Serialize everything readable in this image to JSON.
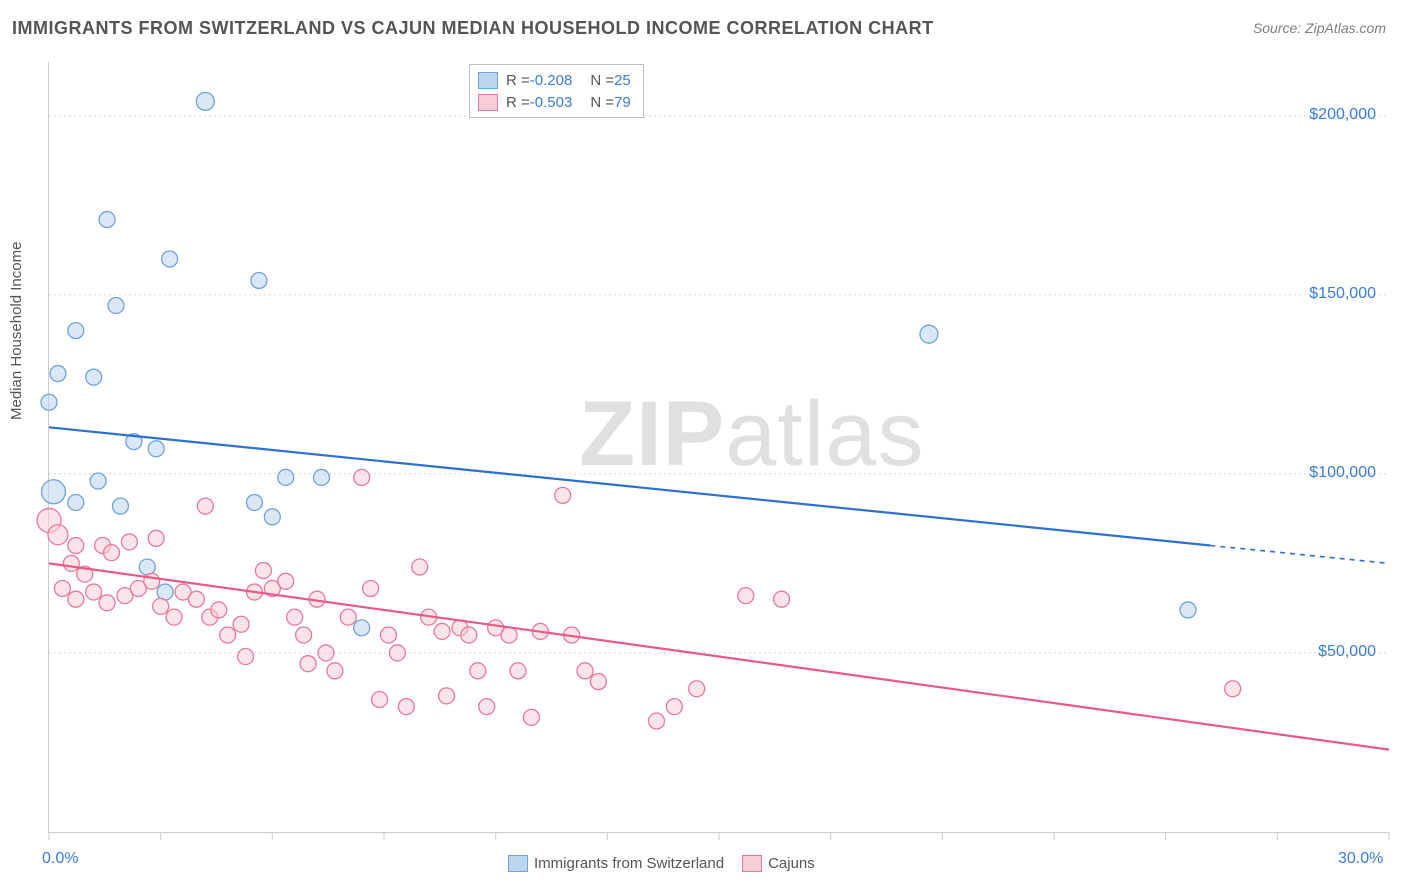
{
  "title": "IMMIGRANTS FROM SWITZERLAND VS CAJUN MEDIAN HOUSEHOLD INCOME CORRELATION CHART",
  "source": "Source: ZipAtlas.com",
  "watermark": {
    "part1": "ZIP",
    "part2": "atlas"
  },
  "y_axis_label": "Median Household Income",
  "chart": {
    "type": "scatter",
    "background_color": "#ffffff",
    "grid_color": "#d8d8d8",
    "axis_color": "#cccccc",
    "tick_label_color": "#3b7dd8",
    "text_color": "#555555",
    "xlim": [
      0,
      30
    ],
    "ylim": [
      0,
      215000
    ],
    "x_ticks_major": [
      0,
      30
    ],
    "x_ticks_major_labels": [
      "0.0%",
      "30.0%"
    ],
    "x_ticks_minor": [
      2.5,
      5,
      7.5,
      10,
      12.5,
      15,
      17.5,
      20,
      22.5,
      25,
      27.5
    ],
    "y_ticks": [
      50000,
      100000,
      150000,
      200000
    ],
    "y_tick_labels": [
      "$50,000",
      "$100,000",
      "$150,000",
      "$200,000"
    ],
    "series": [
      {
        "name": "Immigrants from Switzerland",
        "fill_color": "#bcd4ee",
        "stroke_color": "#6fa3dd",
        "fill_opacity": 0.55,
        "R_label": "R = ",
        "R_value": "-0.208",
        "N_label": "N = ",
        "N_value": "25",
        "trend": {
          "x1": 0,
          "y1": 113000,
          "x2": 26,
          "y2": 80000,
          "x2_dash": 30,
          "y2_dash": 75000,
          "color": "#2e6fd0"
        },
        "points": [
          {
            "x": 3.5,
            "y": 204000,
            "r": 9
          },
          {
            "x": 1.3,
            "y": 171000,
            "r": 8
          },
          {
            "x": 2.7,
            "y": 160000,
            "r": 8
          },
          {
            "x": 4.7,
            "y": 154000,
            "r": 8
          },
          {
            "x": 1.5,
            "y": 147000,
            "r": 8
          },
          {
            "x": 0.6,
            "y": 140000,
            "r": 8
          },
          {
            "x": 0.2,
            "y": 128000,
            "r": 8
          },
          {
            "x": 1.0,
            "y": 127000,
            "r": 8
          },
          {
            "x": 0.0,
            "y": 120000,
            "r": 8
          },
          {
            "x": 1.9,
            "y": 109000,
            "r": 8
          },
          {
            "x": 2.4,
            "y": 107000,
            "r": 8
          },
          {
            "x": 1.1,
            "y": 98000,
            "r": 8
          },
          {
            "x": 0.1,
            "y": 95000,
            "r": 12
          },
          {
            "x": 1.6,
            "y": 91000,
            "r": 8
          },
          {
            "x": 0.6,
            "y": 92000,
            "r": 8
          },
          {
            "x": 4.6,
            "y": 92000,
            "r": 8
          },
          {
            "x": 5.3,
            "y": 99000,
            "r": 8
          },
          {
            "x": 6.1,
            "y": 99000,
            "r": 8
          },
          {
            "x": 5.0,
            "y": 88000,
            "r": 8
          },
          {
            "x": 2.2,
            "y": 74000,
            "r": 8
          },
          {
            "x": 2.6,
            "y": 67000,
            "r": 8
          },
          {
            "x": 7.0,
            "y": 57000,
            "r": 8
          },
          {
            "x": 19.7,
            "y": 139000,
            "r": 9
          },
          {
            "x": 25.5,
            "y": 62000,
            "r": 8
          }
        ]
      },
      {
        "name": "Cajuns",
        "fill_color": "#f7cdd7",
        "stroke_color": "#e77a9a",
        "fill_opacity": 0.55,
        "R_label": "R = ",
        "R_value": "-0.503",
        "N_label": "N = ",
        "N_value": "79",
        "trend": {
          "x1": 0,
          "y1": 75000,
          "x2": 30,
          "y2": 23000,
          "color": "#e85b86"
        },
        "points": [
          {
            "x": 0.0,
            "y": 87000,
            "r": 12
          },
          {
            "x": 0.2,
            "y": 83000,
            "r": 10
          },
          {
            "x": 0.6,
            "y": 80000,
            "r": 8
          },
          {
            "x": 0.5,
            "y": 75000,
            "r": 8
          },
          {
            "x": 1.2,
            "y": 80000,
            "r": 8
          },
          {
            "x": 1.4,
            "y": 78000,
            "r": 8
          },
          {
            "x": 1.8,
            "y": 81000,
            "r": 8
          },
          {
            "x": 0.8,
            "y": 72000,
            "r": 8
          },
          {
            "x": 0.3,
            "y": 68000,
            "r": 8
          },
          {
            "x": 0.6,
            "y": 65000,
            "r": 8
          },
          {
            "x": 1.0,
            "y": 67000,
            "r": 8
          },
          {
            "x": 1.3,
            "y": 64000,
            "r": 8
          },
          {
            "x": 1.7,
            "y": 66000,
            "r": 8
          },
          {
            "x": 2.0,
            "y": 68000,
            "r": 8
          },
          {
            "x": 2.3,
            "y": 70000,
            "r": 8
          },
          {
            "x": 2.5,
            "y": 63000,
            "r": 8
          },
          {
            "x": 2.8,
            "y": 60000,
            "r": 8
          },
          {
            "x": 2.4,
            "y": 82000,
            "r": 8
          },
          {
            "x": 3.0,
            "y": 67000,
            "r": 8
          },
          {
            "x": 3.3,
            "y": 65000,
            "r": 8
          },
          {
            "x": 3.5,
            "y": 91000,
            "r": 8
          },
          {
            "x": 3.6,
            "y": 60000,
            "r": 8
          },
          {
            "x": 3.8,
            "y": 62000,
            "r": 8
          },
          {
            "x": 4.0,
            "y": 55000,
            "r": 8
          },
          {
            "x": 4.3,
            "y": 58000,
            "r": 8
          },
          {
            "x": 4.4,
            "y": 49000,
            "r": 8
          },
          {
            "x": 4.6,
            "y": 67000,
            "r": 8
          },
          {
            "x": 4.8,
            "y": 73000,
            "r": 8
          },
          {
            "x": 5.0,
            "y": 68000,
            "r": 8
          },
          {
            "x": 5.3,
            "y": 70000,
            "r": 8
          },
          {
            "x": 5.5,
            "y": 60000,
            "r": 8
          },
          {
            "x": 5.7,
            "y": 55000,
            "r": 8
          },
          {
            "x": 5.8,
            "y": 47000,
            "r": 8
          },
          {
            "x": 6.0,
            "y": 65000,
            "r": 8
          },
          {
            "x": 6.2,
            "y": 50000,
            "r": 8
          },
          {
            "x": 6.4,
            "y": 45000,
            "r": 8
          },
          {
            "x": 6.7,
            "y": 60000,
            "r": 8
          },
          {
            "x": 7.0,
            "y": 99000,
            "r": 8
          },
          {
            "x": 7.2,
            "y": 68000,
            "r": 8
          },
          {
            "x": 7.4,
            "y": 37000,
            "r": 8
          },
          {
            "x": 7.6,
            "y": 55000,
            "r": 8
          },
          {
            "x": 7.8,
            "y": 50000,
            "r": 8
          },
          {
            "x": 8.0,
            "y": 35000,
            "r": 8
          },
          {
            "x": 8.3,
            "y": 74000,
            "r": 8
          },
          {
            "x": 8.5,
            "y": 60000,
            "r": 8
          },
          {
            "x": 8.8,
            "y": 56000,
            "r": 8
          },
          {
            "x": 8.9,
            "y": 38000,
            "r": 8
          },
          {
            "x": 9.2,
            "y": 57000,
            "r": 8
          },
          {
            "x": 9.4,
            "y": 55000,
            "r": 8
          },
          {
            "x": 9.6,
            "y": 45000,
            "r": 8
          },
          {
            "x": 9.8,
            "y": 35000,
            "r": 8
          },
          {
            "x": 10.0,
            "y": 57000,
            "r": 8
          },
          {
            "x": 10.3,
            "y": 55000,
            "r": 8
          },
          {
            "x": 10.5,
            "y": 45000,
            "r": 8
          },
          {
            "x": 10.8,
            "y": 32000,
            "r": 8
          },
          {
            "x": 11.0,
            "y": 56000,
            "r": 8
          },
          {
            "x": 11.5,
            "y": 94000,
            "r": 8
          },
          {
            "x": 11.7,
            "y": 55000,
            "r": 8
          },
          {
            "x": 12.0,
            "y": 45000,
            "r": 8
          },
          {
            "x": 12.3,
            "y": 42000,
            "r": 8
          },
          {
            "x": 13.6,
            "y": 31000,
            "r": 8
          },
          {
            "x": 14.0,
            "y": 35000,
            "r": 8
          },
          {
            "x": 14.5,
            "y": 40000,
            "r": 8
          },
          {
            "x": 15.6,
            "y": 66000,
            "r": 8
          },
          {
            "x": 16.4,
            "y": 65000,
            "r": 8
          },
          {
            "x": 26.5,
            "y": 40000,
            "r": 8
          }
        ]
      }
    ]
  }
}
